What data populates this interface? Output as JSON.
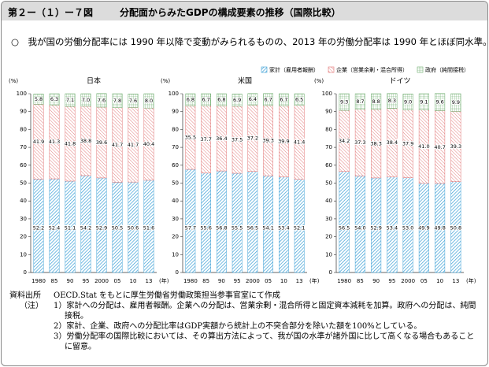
{
  "header": {
    "label": "第２ー（１）ー７図",
    "title": "分配面からみたGDPの構成要素の推移（国際比較）"
  },
  "lead": "○　我が国の労働分配率には 1990 年以降で変動がみられるものの、2013 年の労働分配率は 1990 年とほぼ同水準。",
  "legend": [
    {
      "name": "家計（雇用者報酬）",
      "color": "#3a9fd6"
    },
    {
      "name": "企業（営業余剰・混合所得）",
      "color": "#e07070"
    },
    {
      "name": "政府（純間接税）",
      "color": "#6aaa6a"
    }
  ],
  "chart_data": [
    {
      "type": "stacked-bar",
      "title": "日本",
      "y_unit": "(%)",
      "x_unit": "(年)",
      "categories": [
        "1980",
        "85",
        "90",
        "95",
        "2000",
        "05",
        "10",
        "13"
      ],
      "ylim": [
        0,
        100
      ],
      "yticks": [
        0,
        10,
        20,
        30,
        40,
        50,
        60,
        70,
        80,
        90,
        100
      ],
      "series": [
        {
          "values": [
            52.2,
            52.4,
            51.1,
            54.2,
            52.9,
            50.5,
            50.6,
            51.6
          ],
          "value_labels": [
            "52.2",
            "52.4",
            "51.1",
            "54.2",
            "52.9",
            "50.5",
            "50.6",
            "51.6"
          ]
        },
        {
          "values": [
            41.9,
            41.3,
            41.8,
            38.8,
            39.6,
            41.7,
            41.7,
            40.4
          ],
          "value_labels": [
            "41.9",
            "41.3",
            "41.8",
            "38.8",
            "39.6",
            "41.7",
            "41.7",
            "40.4"
          ]
        },
        {
          "values": [
            5.8,
            6.3,
            7.1,
            7.0,
            7.6,
            7.8,
            7.6,
            8.0
          ],
          "value_labels": [
            "5.8",
            "6.3",
            "7.1",
            "7.0",
            "7.6",
            "7.8",
            "7.6",
            "8.0"
          ]
        }
      ]
    },
    {
      "type": "stacked-bar",
      "title": "米国",
      "y_unit": "(%)",
      "x_unit": "(年)",
      "categories": [
        "1980",
        "85",
        "90",
        "95",
        "2000",
        "05",
        "10",
        "13"
      ],
      "ylim": [
        0,
        100
      ],
      "yticks": [
        0,
        10,
        20,
        30,
        40,
        50,
        60,
        70,
        80,
        90,
        100
      ],
      "series": [
        {
          "values": [
            57.7,
            55.6,
            56.8,
            55.5,
            56.5,
            54.1,
            53.4,
            52.1
          ],
          "value_labels": [
            "57.7",
            "55.6",
            "56.8",
            "55.5",
            "56.5",
            "54.1",
            "53.4",
            "52.1"
          ]
        },
        {
          "values": [
            35.5,
            37.7,
            36.4,
            37.5,
            37.2,
            39.3,
            39.9,
            41.4
          ],
          "value_labels": [
            "35.5",
            "37.7",
            "36.4",
            "37.5",
            "37.2",
            "39.3",
            "39.9",
            "41.4"
          ]
        },
        {
          "values": [
            6.8,
            6.7,
            6.8,
            6.9,
            6.4,
            6.7,
            6.7,
            6.5
          ],
          "value_labels": [
            "6.8",
            "6.7",
            "6.8",
            "6.9",
            "6.4",
            "6.7",
            "6.7",
            "6.5"
          ]
        }
      ]
    },
    {
      "type": "stacked-bar",
      "title": "ドイツ",
      "y_unit": "(%)",
      "x_unit": "(年)",
      "categories": [
        "1980",
        "85",
        "90",
        "95",
        "2000",
        "05",
        "10",
        "13"
      ],
      "ylim": [
        0,
        100
      ],
      "yticks": [
        0,
        10,
        20,
        30,
        40,
        50,
        60,
        70,
        80,
        90,
        100
      ],
      "series": [
        {
          "values": [
            56.5,
            54.0,
            52.9,
            53.4,
            53.0,
            49.9,
            49.8,
            50.8
          ],
          "value_labels": [
            "56.5",
            "54.0",
            "52.9",
            "53.4",
            "53.0",
            "49.9",
            "49.8",
            "50.8"
          ]
        },
        {
          "values": [
            34.2,
            37.3,
            38.3,
            38.4,
            37.9,
            41.0,
            40.7,
            39.3
          ],
          "value_labels": [
            "34.2",
            "37.3",
            "38.3",
            "38.4",
            "37.9",
            "41.0",
            "40.7",
            "39.3"
          ]
        },
        {
          "values": [
            9.3,
            8.7,
            8.8,
            8.3,
            9.0,
            9.1,
            9.6,
            9.9
          ],
          "value_labels": [
            "9.3",
            "8.7",
            "8.8",
            "8.3",
            "9.0",
            "9.1",
            "9.6",
            "9.9"
          ]
        }
      ]
    }
  ],
  "notes": {
    "source_label": "資料出所",
    "source": "OECD.Stat をもとに厚生労働省労働政策担当参事官室にて作成",
    "note_label": "（注）",
    "items": [
      "1）家計への分配は、雇用者報酬。企業への分配は、営業余剰・混合所得と固定資本減耗を加算。政府への分配は、純間接税。",
      "2）家計、企業、政府への分配比率はGDP実額から統計上の不突合部分を除いた額を100%としている。",
      "3）労働分配率の国際比較においては、その算出方法によって、我が国の水準が諸外国に比して高くなる場合もあることに留意。"
    ]
  }
}
